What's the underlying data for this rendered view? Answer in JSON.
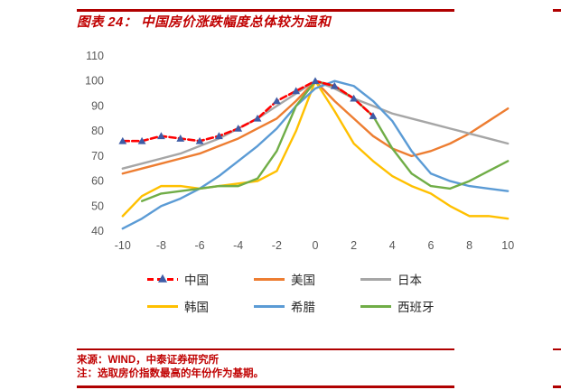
{
  "page": {
    "title": "图表 24：  中国房价涨跌幅度总体较为温和",
    "source": "来源：WIND，中泰证券研究所",
    "note": "注：选取房价指数最高的年份作为基期。",
    "accent_color": "#C00000",
    "rule_color": "#B00000"
  },
  "chart_data": {
    "type": "line",
    "title": "",
    "xlabel": "",
    "ylabel": "",
    "xlim": [
      -10.6,
      10.6
    ],
    "ylim": [
      40,
      110
    ],
    "x_ticks": [
      -10,
      -8,
      -6,
      -4,
      -2,
      0,
      2,
      4,
      6,
      8,
      10
    ],
    "y_ticks": [
      110,
      100,
      90,
      80,
      70,
      60,
      50,
      40
    ],
    "grid": false,
    "legend_position": "bottom",
    "series": [
      {
        "id": "china",
        "name": "中国",
        "color": "#FF0000",
        "style": "dashed",
        "marker": "triangle",
        "marker_color": "#3E5CA6",
        "x": [
          -10,
          -9,
          -8,
          -7,
          -6,
          -5,
          -4,
          -3,
          -2,
          -1,
          0,
          1,
          2,
          3
        ],
        "values": [
          76,
          76,
          78,
          77,
          76,
          78,
          81,
          85,
          92,
          96,
          100,
          98,
          93,
          86
        ]
      },
      {
        "id": "usa",
        "name": "美国",
        "color": "#ED7D31",
        "style": "solid",
        "x": [
          -10,
          -9,
          -8,
          -7,
          -6,
          -5,
          -4,
          -3,
          -2,
          -1,
          0,
          1,
          2,
          3,
          4,
          5,
          6,
          7,
          8,
          9,
          10
        ],
        "values": [
          63,
          65,
          67,
          69,
          71,
          74,
          77,
          81,
          85,
          92,
          100,
          92,
          85,
          78,
          73,
          70,
          72,
          75,
          79,
          84,
          89
        ]
      },
      {
        "id": "japan",
        "name": "日本",
        "color": "#A6A6A6",
        "style": "solid",
        "x": [
          -10,
          -9,
          -8,
          -7,
          -6,
          -5,
          -4,
          -3,
          -2,
          -1,
          0,
          1,
          2,
          3,
          4,
          5,
          6,
          7,
          8,
          9,
          10
        ],
        "values": [
          65,
          67,
          69,
          71,
          74,
          77,
          81,
          85,
          90,
          95,
          100,
          97,
          93,
          90,
          87,
          85,
          83,
          81,
          79,
          77,
          75
        ]
      },
      {
        "id": "korea",
        "name": "韩国",
        "color": "#FFC000",
        "style": "solid",
        "x": [
          -10,
          -9,
          -8,
          -7,
          -6,
          -5,
          -4,
          -3,
          -2,
          -1,
          0,
          1,
          2,
          3,
          4,
          5,
          6,
          7,
          8,
          9,
          10
        ],
        "values": [
          46,
          54,
          58,
          58,
          57,
          58,
          59,
          60,
          64,
          80,
          100,
          88,
          75,
          68,
          62,
          58,
          55,
          50,
          46,
          46,
          45
        ]
      },
      {
        "id": "greece",
        "name": "希腊",
        "color": "#5B9BD5",
        "style": "solid",
        "x": [
          -10,
          -9,
          -8,
          -7,
          -6,
          -5,
          -4,
          -3,
          -2,
          -1,
          0,
          1,
          2,
          3,
          4,
          5,
          6,
          7,
          8,
          9,
          10
        ],
        "values": [
          41,
          45,
          50,
          53,
          57,
          62,
          68,
          74,
          81,
          90,
          97,
          100,
          98,
          92,
          84,
          72,
          63,
          60,
          58,
          57,
          56
        ]
      },
      {
        "id": "spain",
        "name": "西班牙",
        "color": "#70AD47",
        "style": "solid",
        "x": [
          -9,
          -8,
          -7,
          -6,
          -5,
          -4,
          -3,
          -2,
          -1,
          0,
          1,
          2,
          3,
          4,
          5,
          6,
          7,
          8,
          9,
          10
        ],
        "values": [
          52,
          55,
          56,
          57,
          58,
          58,
          61,
          72,
          90,
          100,
          98,
          93,
          86,
          73,
          63,
          58,
          57,
          60,
          64,
          68
        ]
      }
    ]
  }
}
